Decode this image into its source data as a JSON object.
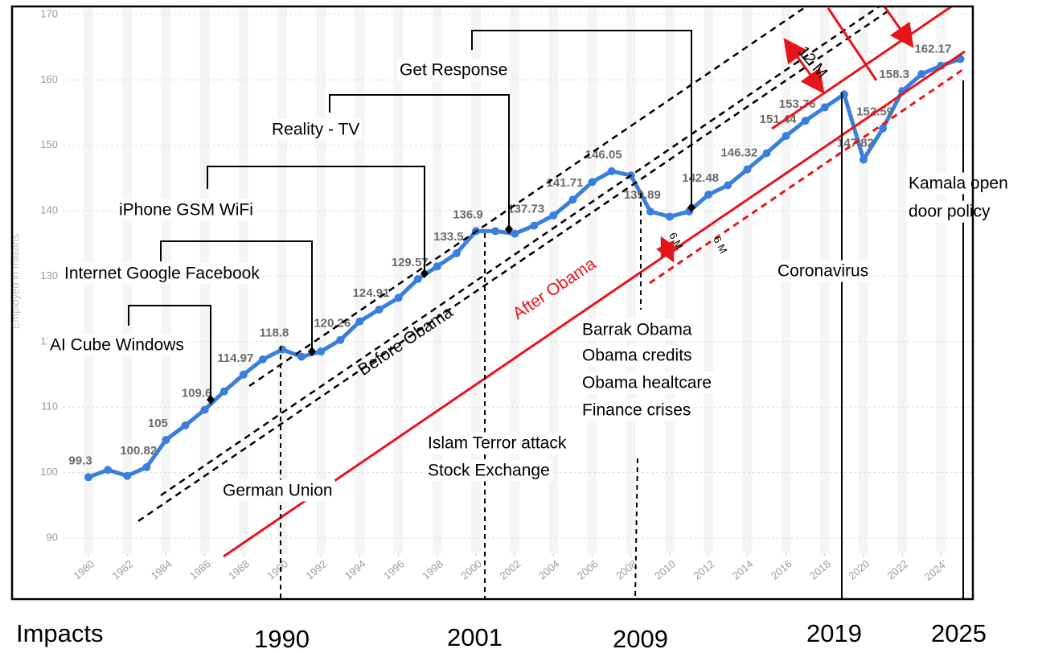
{
  "chart_data": {
    "type": "line",
    "y_label": "Employed in millions",
    "x": [
      1980,
      1981,
      1982,
      1983,
      1984,
      1985,
      1986,
      1987,
      1988,
      1989,
      1990,
      1991,
      1992,
      1993,
      1994,
      1995,
      1996,
      1997,
      1998,
      1999,
      2000,
      2001,
      2002,
      2003,
      2004,
      2005,
      2006,
      2007,
      2008,
      2009,
      2010,
      2011,
      2012,
      2013,
      2014,
      2015,
      2016,
      2017,
      2018,
      2019,
      2020,
      2021,
      2022,
      2023,
      2024,
      2025
    ],
    "series": [
      {
        "name": "Employed",
        "color": "#3a7fdc",
        "values": [
          99.3,
          100.4,
          99.5,
          100.82,
          105,
          107.2,
          109.6,
          112.4,
          114.97,
          117.3,
          118.8,
          117.7,
          118.5,
          120.26,
          123.1,
          124.91,
          126.7,
          129.57,
          131.5,
          133.5,
          136.9,
          136.9,
          136.5,
          137.73,
          139.3,
          141.71,
          144.4,
          146.05,
          145.4,
          139.89,
          139.1,
          139.9,
          142.48,
          143.9,
          146.32,
          148.8,
          151.44,
          153.76,
          155.8,
          157.8,
          147.82,
          152.59,
          158.3,
          160.9,
          162.17,
          163.2
        ],
        "value_labels": [
          "99.3",
          null,
          null,
          "100.82",
          "105",
          null,
          "109.6",
          null,
          "114.97",
          null,
          "118.8",
          null,
          null,
          "120.26",
          null,
          "124.91",
          null,
          "129.57",
          null,
          "133.5",
          "136.9",
          null,
          null,
          "137.73",
          null,
          "141.71",
          null,
          "146.05",
          null,
          "139.89",
          null,
          null,
          "142.48",
          null,
          "146.32",
          null,
          "151.44",
          "153.76",
          null,
          null,
          "147.82",
          "152.59",
          "158.3",
          null,
          "162.17",
          null
        ]
      }
    ],
    "xlim": [
      1980,
      2025
    ],
    "xticks": [
      1980,
      1982,
      1984,
      1986,
      1988,
      1990,
      1992,
      1994,
      1996,
      1998,
      2000,
      2002,
      2004,
      2006,
      2008,
      2010,
      2012,
      2014,
      2016,
      2018,
      2020,
      2022,
      {
        "value": 2024,
        "label": "2024'"
      }
    ],
    "ylim": [
      90,
      170
    ],
    "yticks": [
      90,
      100,
      110,
      120,
      130,
      140,
      150,
      160,
      170
    ],
    "grid": true,
    "annotations": [
      "AI Cube Windows",
      "Internet Google Facebook",
      "iPhone GSM WiFi",
      "Reality - TV",
      "Get Response",
      "Barrak Obama",
      "Obama credits",
      "Obama healtcare",
      "Finance crises",
      "Islam Terror attack",
      "Stock Exchange",
      "German Union",
      "Coronavirus",
      "Kamala open",
      "door policy"
    ],
    "line_labels": [
      "Before Obama",
      "After Obama",
      "12 M",
      "6 M",
      "6 M"
    ],
    "bottom_labels": [
      "Impacts",
      "1990",
      "2001",
      "2009",
      "2019",
      "2025"
    ]
  }
}
